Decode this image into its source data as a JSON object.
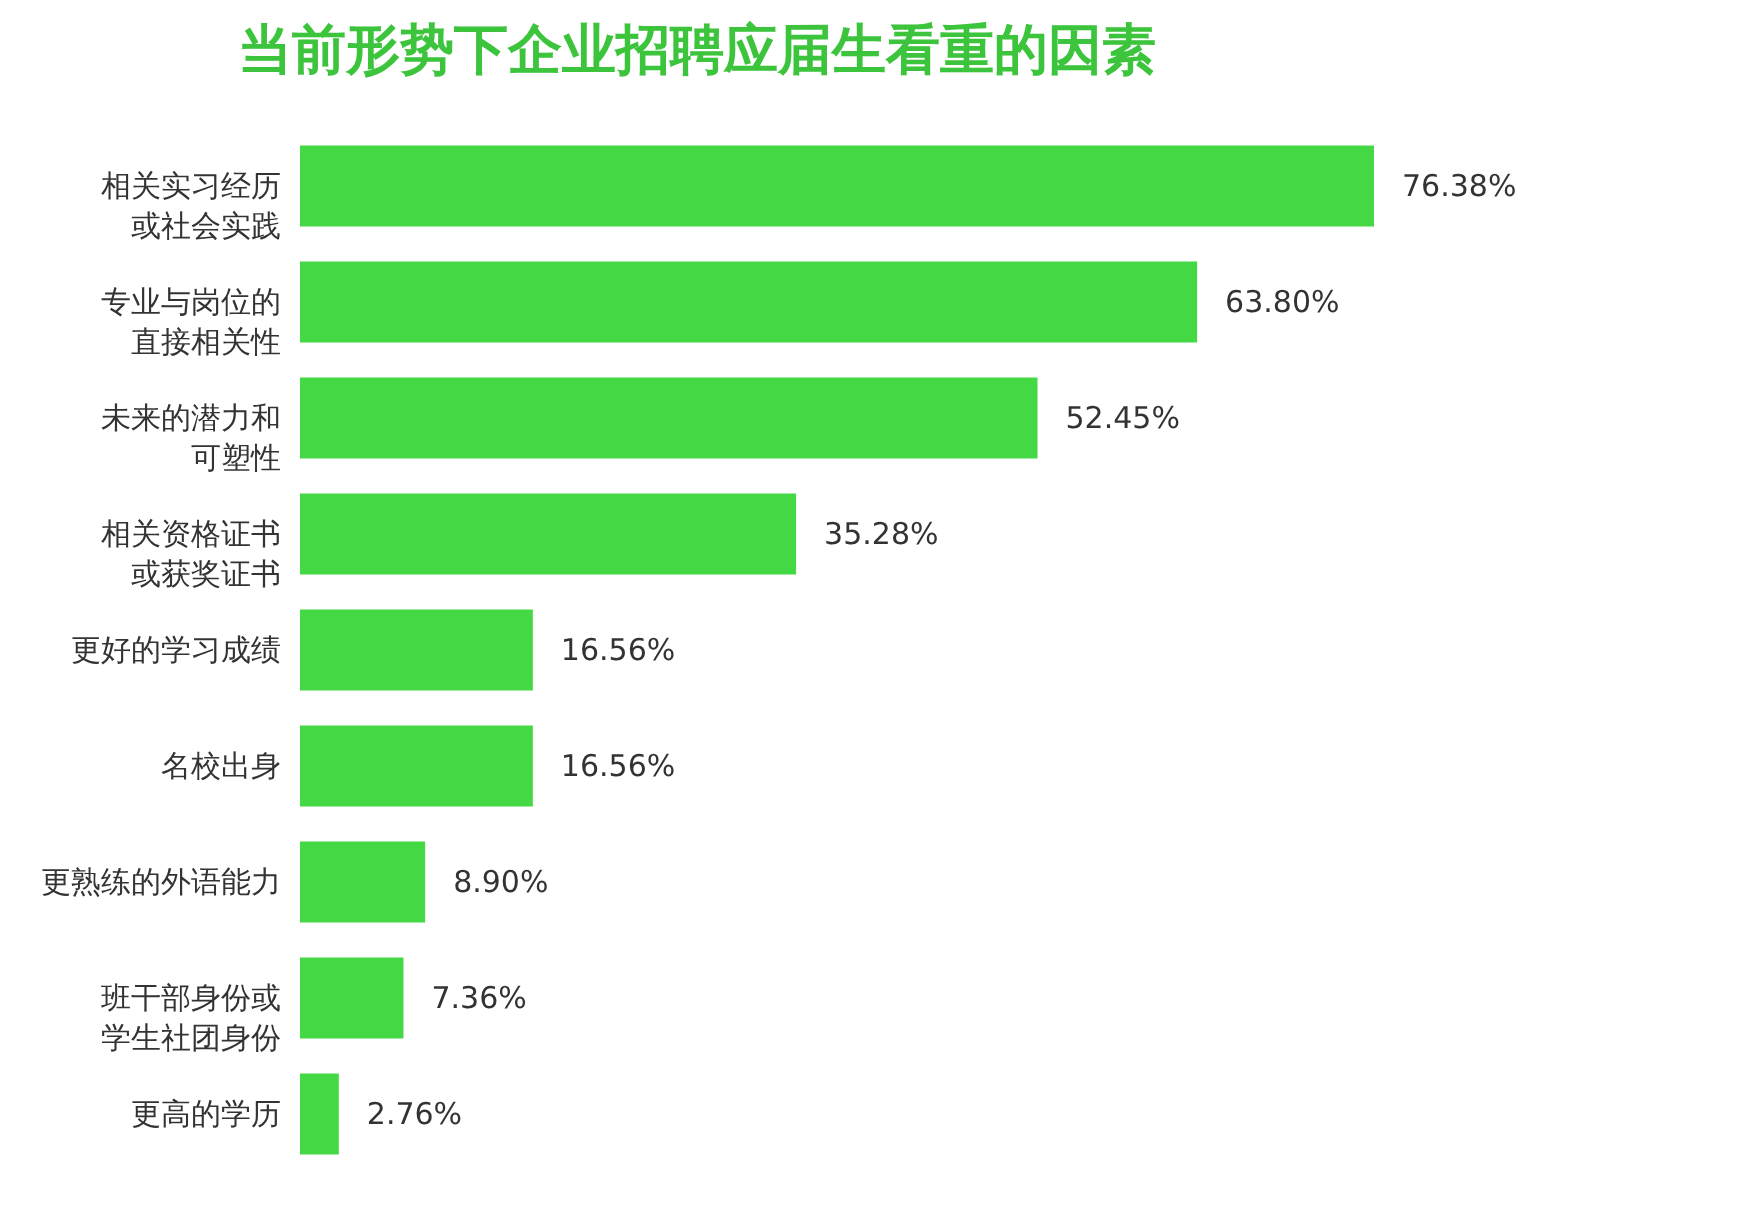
{
  "chart_data": {
    "type": "bar",
    "orientation": "horizontal",
    "title": "当前形势下企业招聘应届生看重的因素",
    "categories": [
      "相关实习经历或社会实践",
      "专业与岗位的直接相关性",
      "未来的潜力和可塑性",
      "相关资格证书或获奖证书",
      "更好的学习成绩",
      "名校出身",
      "更熟练的外语能力",
      "班干部身份或学生社团身份",
      "更高的学历"
    ],
    "values": [
      76.38,
      63.8,
      52.45,
      35.28,
      16.56,
      16.56,
      8.9,
      7.36,
      2.76
    ],
    "value_labels": [
      "76.38%",
      "63.80%",
      "52.45%",
      "35.28%",
      "16.56%",
      "16.56%",
      "8.90%",
      "7.36%",
      "2.76%"
    ],
    "color": "#44d944",
    "grid": false
  }
}
